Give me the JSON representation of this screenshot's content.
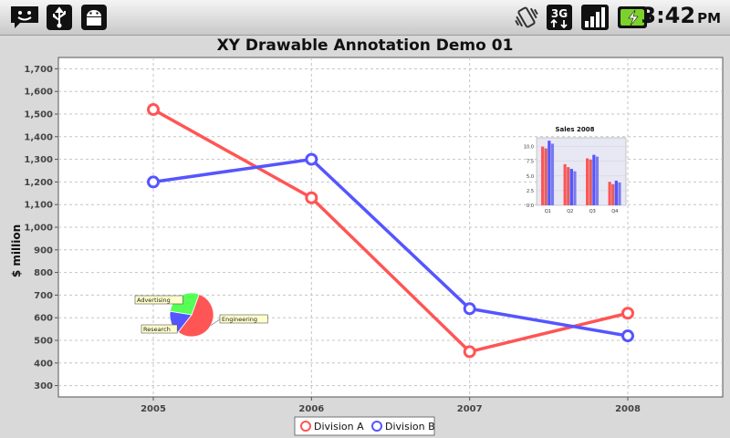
{
  "status_bar": {
    "time": "3:42",
    "ampm": "PM",
    "network": "3G",
    "icons": [
      "chat-notification-icon",
      "usb-icon",
      "android-debug-icon",
      "vibrate-icon",
      "network-3g-icon",
      "signal-strength-icon",
      "battery-charging-icon"
    ]
  },
  "chart_data": {
    "type": "line",
    "title": "XY Drawable Annotation Demo 01",
    "ylabel": "$ million",
    "xlabel": "",
    "x": [
      "2005",
      "2006",
      "2007",
      "2008"
    ],
    "ylim": [
      250,
      1750
    ],
    "y_ticks": [
      "300",
      "400",
      "500",
      "600",
      "700",
      "800",
      "900",
      "1,000",
      "1,100",
      "1,200",
      "1,300",
      "1,400",
      "1,500",
      "1,600",
      "1,700"
    ],
    "grid": true,
    "legend_position": "bottom",
    "series": [
      {
        "name": "Division A",
        "values": [
          1520,
          1130,
          450,
          620
        ],
        "color": "#ff5555"
      },
      {
        "name": "Division B",
        "values": [
          1200,
          1300,
          640,
          520
        ],
        "color": "#5555ff"
      }
    ],
    "annotations": {
      "pie": {
        "labels": [
          "Engineering",
          "Research",
          "Advertising"
        ],
        "values": [
          55,
          17,
          28
        ],
        "colors": [
          "#ff5555",
          "#5555ff",
          "#55ff55"
        ]
      },
      "bar": {
        "title": "Sales 2008",
        "categories": [
          "Q1",
          "Q2",
          "Q3",
          "Q4"
        ],
        "y_ticks": [
          "0.0",
          "2.5",
          "5.0",
          "7.5",
          "10.0"
        ],
        "ylim": [
          0,
          11.5
        ],
        "series": [
          {
            "values": [
              10.0,
              7.0,
              8.0,
              4.0
            ],
            "color": "#ff5555"
          },
          {
            "values": [
              9.7,
              6.5,
              7.8,
              3.6
            ],
            "color": "#e06060"
          },
          {
            "values": [
              11.0,
              6.2,
              8.6,
              4.2
            ],
            "color": "#5555ff"
          },
          {
            "values": [
              10.5,
              5.8,
              8.3,
              3.9
            ],
            "color": "#7a7aee"
          }
        ]
      }
    }
  }
}
